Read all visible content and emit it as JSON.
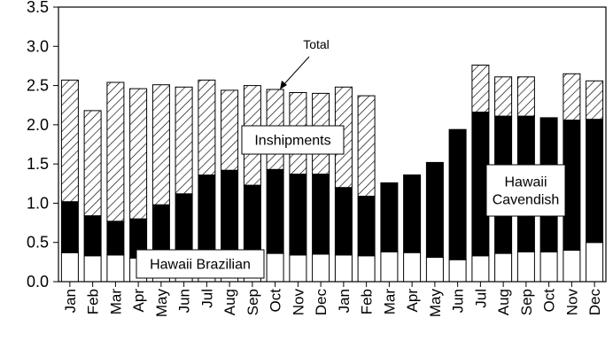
{
  "chart_data": {
    "type": "bar",
    "stacked": true,
    "title": "",
    "xlabel": "",
    "ylabel": "",
    "ylim": [
      0,
      3.5
    ],
    "yticks": [
      "0.0",
      "0.5",
      "1.0",
      "1.5",
      "2.0",
      "2.5",
      "3.0",
      "3.5"
    ],
    "grid": false,
    "categories": [
      "Jan",
      "Feb",
      "Mar",
      "Apr",
      "May",
      "Jun",
      "Jul",
      "Aug",
      "Sep",
      "Oct",
      "Nov",
      "Dec",
      "Jan",
      "Feb",
      "Mar",
      "Apr",
      "May",
      "Jun",
      "Jul",
      "Aug",
      "Sep",
      "Oct",
      "Nov",
      "Dec"
    ],
    "series": [
      {
        "name": "Hawaii Brazilian",
        "fill": "#ffffff",
        "values": [
          0.37,
          0.33,
          0.34,
          0.3,
          0.33,
          0.34,
          0.34,
          0.34,
          0.35,
          0.36,
          0.34,
          0.35,
          0.34,
          0.33,
          0.38,
          0.37,
          0.31,
          0.28,
          0.33,
          0.36,
          0.38,
          0.38,
          0.4,
          0.5
        ]
      },
      {
        "name": "Hawaii Cavendish",
        "fill": "#000000",
        "values": [
          0.65,
          0.51,
          0.43,
          0.5,
          0.65,
          0.78,
          1.02,
          1.08,
          0.88,
          1.07,
          1.03,
          1.02,
          0.86,
          0.76,
          0.88,
          0.99,
          1.21,
          1.66,
          1.83,
          1.75,
          1.73,
          1.71,
          1.66,
          1.57
        ]
      },
      {
        "name": "Inshipments",
        "fill": "hatch",
        "values": [
          1.55,
          1.34,
          1.77,
          1.66,
          1.53,
          1.36,
          1.21,
          1.02,
          1.27,
          1.02,
          1.04,
          1.03,
          1.28,
          1.28,
          0.0,
          0.0,
          0.0,
          0.0,
          0.6,
          0.5,
          0.5,
          0.0,
          0.59,
          0.49
        ]
      }
    ],
    "annotations": [
      {
        "text": "Total"
      },
      {
        "text": "Inshipments"
      },
      {
        "text": "Hawaii"
      },
      {
        "text": "Cavendish"
      },
      {
        "text": "Hawaii Brazilian"
      }
    ]
  }
}
